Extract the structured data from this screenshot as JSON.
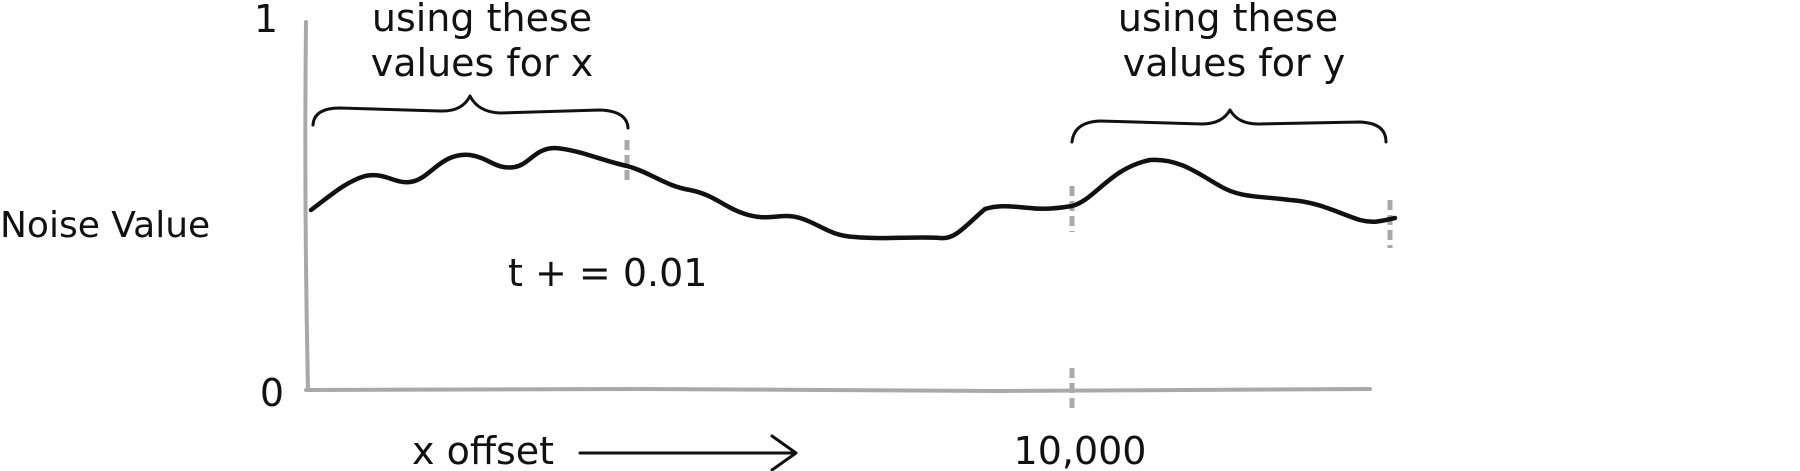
{
  "y_axis": {
    "label": "Noise Value",
    "top_tick": "1",
    "bottom_tick": "0"
  },
  "x_axis": {
    "label": "x offset",
    "marker_label": "10,000"
  },
  "annotations": {
    "x_brace_line1": "using these",
    "x_brace_line2": "values for x",
    "y_brace_line1": "using these",
    "y_brace_line2": "values for y",
    "increment": "t + = 0.01"
  },
  "colors": {
    "axis": "#a9a9a9",
    "curve": "#111111",
    "text": "#111111"
  },
  "icons": {
    "arrow": "right-arrow-icon"
  }
}
